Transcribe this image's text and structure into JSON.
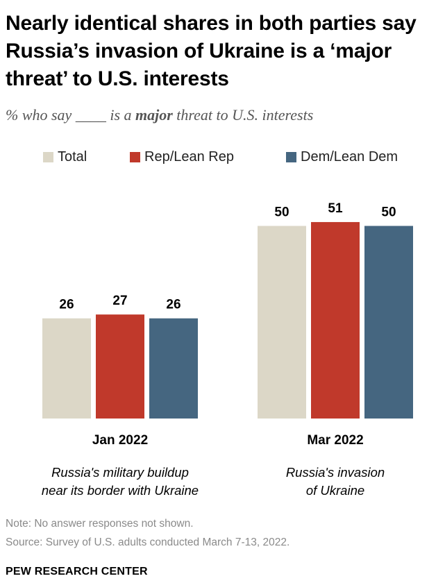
{
  "title": "Nearly identical shares in both parties say Russia’s invasion of Ukraine is a ‘major threat’ to U.S. interests",
  "subtitle": {
    "before": "% who say ____ is a ",
    "emphasis": "major",
    "after": " threat to U.S. interests"
  },
  "notes": {
    "note": "Note: No answer responses not shown.",
    "source": "Source: Survey of U.S. adults conducted March 7-13, 2022."
  },
  "footer": "PEW RESEARCH CENTER",
  "colors": {
    "total": "#dcd7c7",
    "rep": "#c0392b",
    "dem": "#456680"
  },
  "chart_data": {
    "type": "bar",
    "categories": [
      "Jan 2022",
      "Mar 2022"
    ],
    "category_descriptions": [
      [
        "Russia's military buildup",
        "near its border with Ukraine"
      ],
      [
        "Russia's invasion",
        "of Ukraine"
      ]
    ],
    "series": [
      {
        "name": "Total",
        "values": [
          26,
          50
        ]
      },
      {
        "name": "Rep/Lean Rep",
        "values": [
          27,
          51
        ]
      },
      {
        "name": "Dem/Lean Dem",
        "values": [
          26,
          50
        ]
      }
    ],
    "ylim": [
      0,
      55
    ],
    "grid": false,
    "legend": "top"
  }
}
